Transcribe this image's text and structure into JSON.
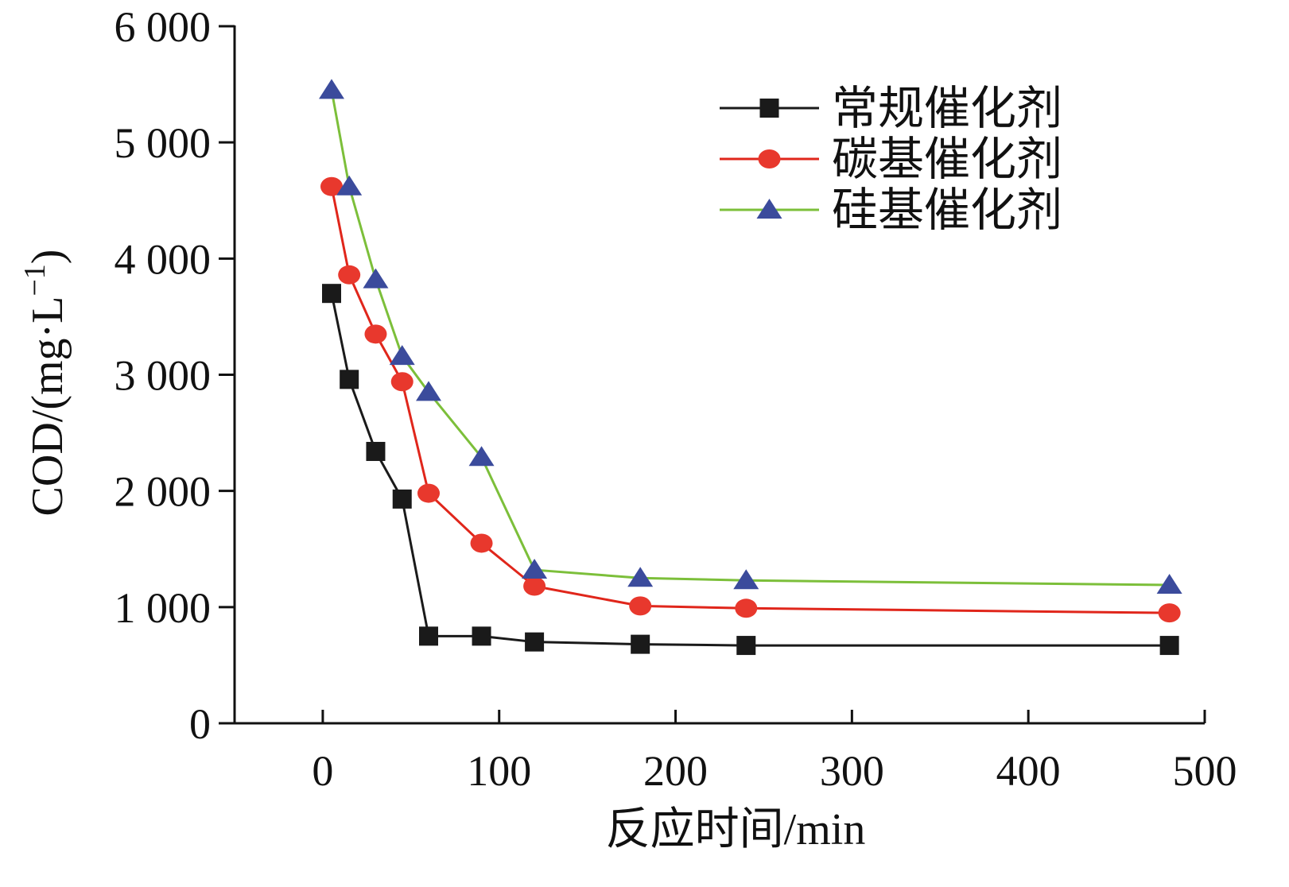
{
  "chart_data": {
    "type": "line",
    "title": "",
    "xlabel": "反应时间/min",
    "ylabel_parts": {
      "main": "COD/(mg·L",
      "sup": "−1",
      "close": ")"
    },
    "xlim": [
      -50,
      500
    ],
    "ylim": [
      0,
      6000
    ],
    "xticks": [
      0,
      100,
      200,
      300,
      400,
      500
    ],
    "xtick_labels": [
      "0",
      "100",
      "200",
      "300",
      "400",
      "500"
    ],
    "yticks": [
      0,
      1000,
      2000,
      3000,
      4000,
      5000,
      6000
    ],
    "ytick_labels": [
      "0",
      "1 000",
      "2 000",
      "3 000",
      "4 000",
      "5 000",
      "6 000"
    ],
    "grid": false,
    "legend_position": "top-right",
    "series": [
      {
        "name": "常规催化剂",
        "marker": "square",
        "color": "#1a1a1a",
        "marker_color": "#1a1a1a",
        "x": [
          5,
          15,
          30,
          45,
          60,
          90,
          120,
          180,
          240,
          480
        ],
        "y": [
          3700,
          2960,
          2340,
          1930,
          750,
          750,
          700,
          680,
          670,
          670
        ]
      },
      {
        "name": "碳基催化剂",
        "marker": "circle",
        "color": "#e0261b",
        "marker_color": "#e8382d",
        "x": [
          5,
          15,
          30,
          45,
          60,
          90,
          120,
          180,
          240,
          480
        ],
        "y": [
          4620,
          3860,
          3350,
          2940,
          1980,
          1550,
          1180,
          1010,
          990,
          950
        ]
      },
      {
        "name": "硅基催化剂",
        "marker": "triangle",
        "color": "#7cbf3a",
        "marker_color": "#3b4b9c",
        "x": [
          5,
          15,
          30,
          45,
          60,
          90,
          120,
          180,
          240,
          480
        ],
        "y": [
          5450,
          4620,
          3820,
          3160,
          2850,
          2290,
          1320,
          1250,
          1230,
          1190
        ]
      }
    ]
  }
}
